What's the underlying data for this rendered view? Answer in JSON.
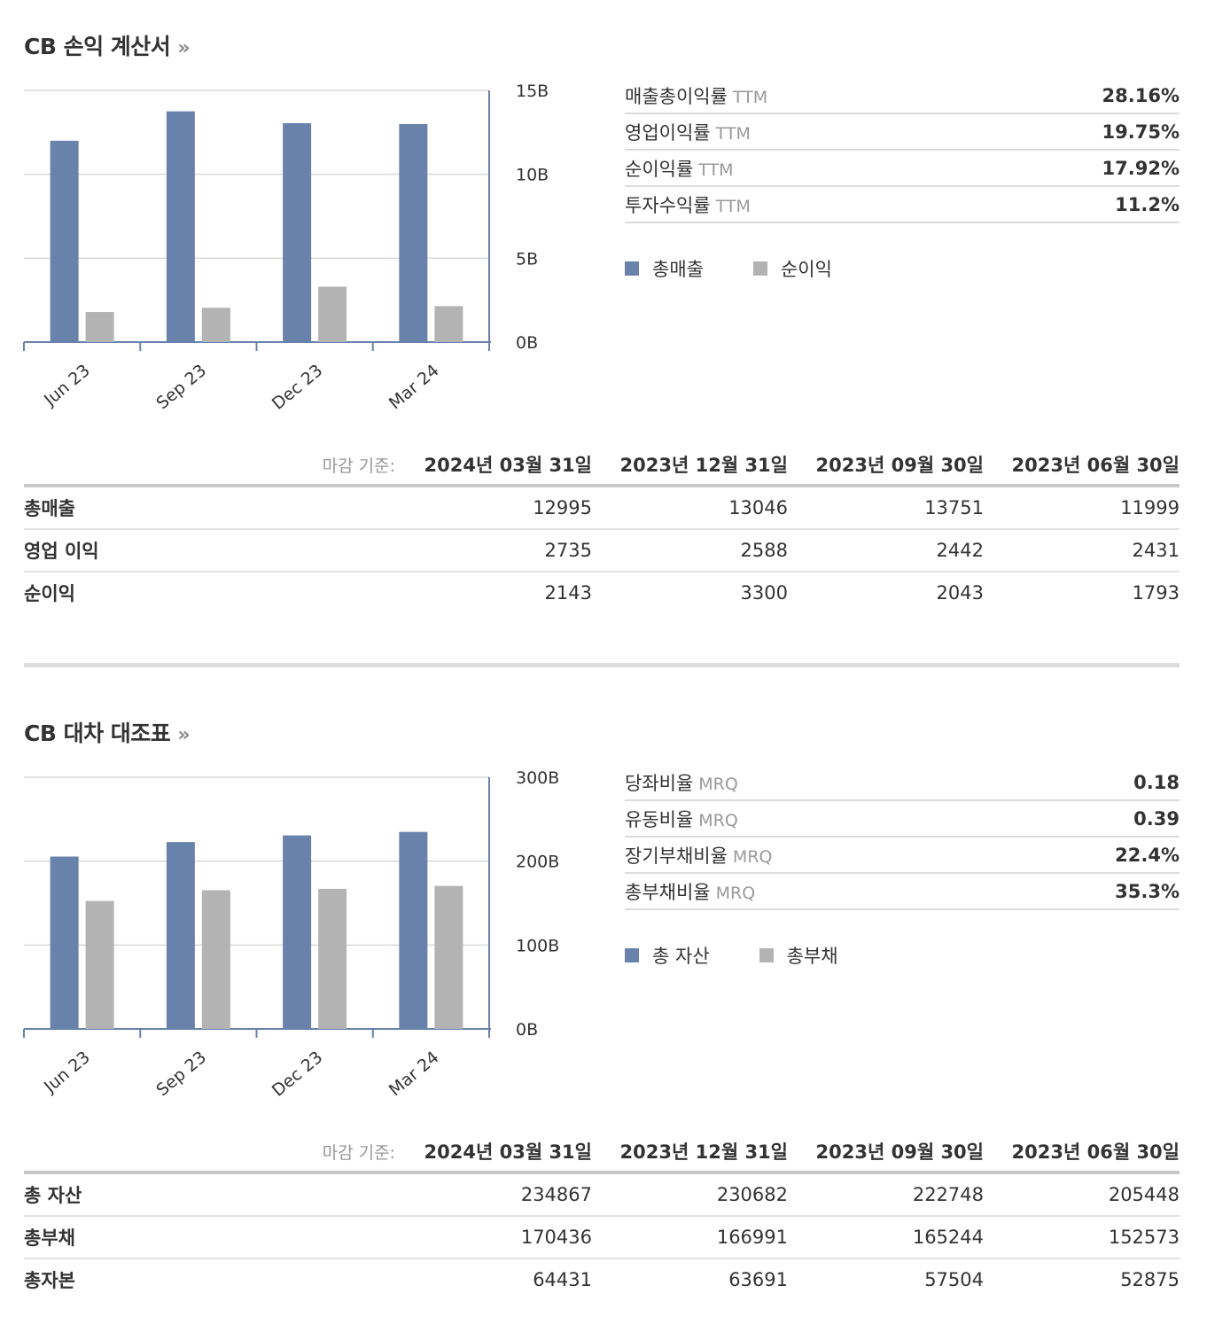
{
  "income": {
    "title": "CB 손익 계산서",
    "arrow": "»",
    "chart_data": {
      "type": "bar",
      "categories": [
        "Jun 23",
        "Sep 23",
        "Dec 23",
        "Mar 24"
      ],
      "series": [
        {
          "name": "총매출",
          "values": [
            11999,
            13751,
            13046,
            12995
          ],
          "color": "#6882ac"
        },
        {
          "name": "순이익",
          "values": [
            1793,
            2043,
            3300,
            2143
          ],
          "color": "#b3b3b3"
        }
      ],
      "unit_divisor": 1000,
      "yticks": [
        "0B",
        "5B",
        "10B",
        "15B"
      ],
      "ylim": [
        0,
        15000
      ]
    },
    "ratios": [
      {
        "name": "매출총이익률",
        "suffix": "TTM",
        "value": "28.16%"
      },
      {
        "name": "영업이익률",
        "suffix": "TTM",
        "value": "19.75%"
      },
      {
        "name": "순이익률",
        "suffix": "TTM",
        "value": "17.92%"
      },
      {
        "name": "투자수익률",
        "suffix": "TTM",
        "value": "11.2%"
      }
    ],
    "legend": [
      {
        "label": "총매출",
        "color": "#6882ac"
      },
      {
        "label": "순이익",
        "color": "#b3b3b3"
      }
    ],
    "table": {
      "label": "마감 기준:",
      "headers": [
        "2024년 03월 31일",
        "2023년 12월 31일",
        "2023년 09월 30일",
        "2023년 06월 30일"
      ],
      "rows": [
        {
          "name": "총매출",
          "values": [
            "12995",
            "13046",
            "13751",
            "11999"
          ]
        },
        {
          "name": "영업 이익",
          "values": [
            "2735",
            "2588",
            "2442",
            "2431"
          ]
        },
        {
          "name": "순이익",
          "values": [
            "2143",
            "3300",
            "2043",
            "1793"
          ]
        }
      ]
    }
  },
  "balance": {
    "title": "CB 대차 대조표",
    "arrow": "»",
    "chart_data": {
      "type": "bar",
      "categories": [
        "Jun 23",
        "Sep 23",
        "Dec 23",
        "Mar 24"
      ],
      "series": [
        {
          "name": "총 자산",
          "values": [
            205448,
            222748,
            230682,
            234867
          ],
          "color": "#6882ac"
        },
        {
          "name": "총부채",
          "values": [
            152573,
            165244,
            166991,
            170436
          ],
          "color": "#b3b3b3"
        }
      ],
      "unit_divisor": 1000,
      "yticks": [
        "0B",
        "100B",
        "200B",
        "300B"
      ],
      "ylim": [
        0,
        300000
      ]
    },
    "ratios": [
      {
        "name": "당좌비율",
        "suffix": "MRQ",
        "value": "0.18"
      },
      {
        "name": "유동비율",
        "suffix": "MRQ",
        "value": "0.39"
      },
      {
        "name": "장기부채비율",
        "suffix": "MRQ",
        "value": "22.4%"
      },
      {
        "name": "총부채비율",
        "suffix": "MRQ",
        "value": "35.3%"
      }
    ],
    "legend": [
      {
        "label": "총 자산",
        "color": "#6882ac"
      },
      {
        "label": "총부채",
        "color": "#b3b3b3"
      }
    ],
    "table": {
      "label": "마감 기준:",
      "headers": [
        "2024년 03월 31일",
        "2023년 12월 31일",
        "2023년 09월 30일",
        "2023년 06월 30일"
      ],
      "rows": [
        {
          "name": "총 자산",
          "values": [
            "234867",
            "230682",
            "222748",
            "205448"
          ]
        },
        {
          "name": "총부채",
          "values": [
            "170436",
            "166991",
            "165244",
            "152573"
          ]
        },
        {
          "name": "총자본",
          "values": [
            "64431",
            "63691",
            "57504",
            "52875"
          ]
        }
      ]
    }
  }
}
